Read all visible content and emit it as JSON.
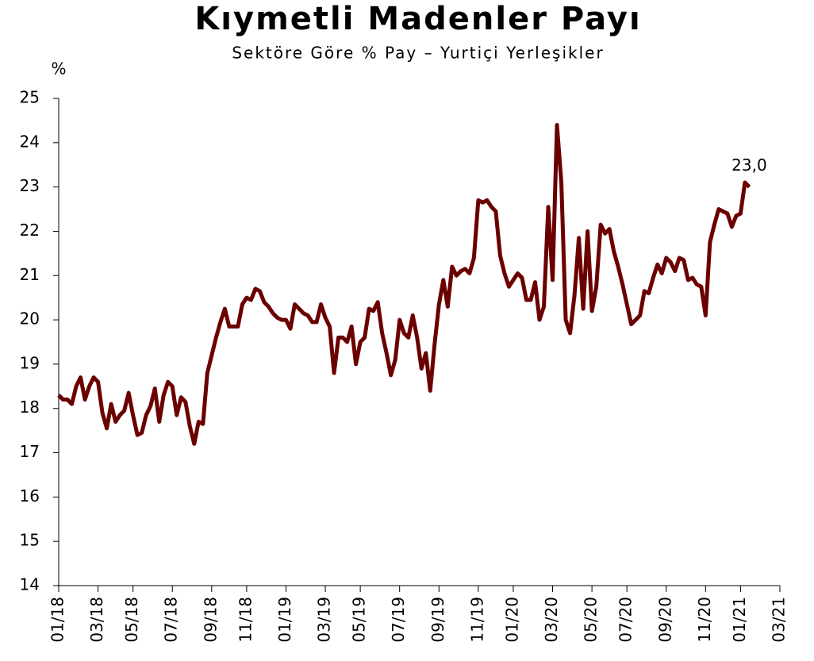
{
  "chart_data": {
    "type": "line",
    "title": "Kıymetli Madenler Payı",
    "subtitle": "Sektöre Göre % Pay – Yurtiçi Yerleşikler",
    "ylabel": "%",
    "categories": [
      "01/18",
      null,
      null,
      null,
      null,
      null,
      null,
      null,
      null,
      "03/18",
      null,
      null,
      null,
      null,
      null,
      null,
      null,
      "05/18",
      null,
      null,
      null,
      null,
      null,
      null,
      null,
      null,
      "07/18",
      null,
      null,
      null,
      null,
      null,
      null,
      null,
      null,
      "09/18",
      null,
      null,
      null,
      null,
      null,
      null,
      null,
      "11/18",
      null,
      null,
      null,
      null,
      null,
      null,
      null,
      null,
      "01/19",
      null,
      null,
      null,
      null,
      null,
      null,
      null,
      null,
      "03/19",
      null,
      null,
      null,
      null,
      null,
      null,
      null,
      "05/19",
      null,
      null,
      null,
      null,
      null,
      null,
      null,
      null,
      "07/19",
      null,
      null,
      null,
      null,
      null,
      null,
      null,
      null,
      "09/19",
      null,
      null,
      null,
      null,
      null,
      null,
      null,
      null,
      "11/19",
      null,
      null,
      null,
      null,
      null,
      null,
      null,
      "01/20",
      null,
      null,
      null,
      null,
      null,
      null,
      null,
      null,
      "03/20",
      null,
      null,
      null,
      null,
      null,
      null,
      null,
      null,
      "05/20",
      null,
      null,
      null,
      null,
      null,
      null,
      null,
      "07/20",
      null,
      null,
      null,
      null,
      null,
      null,
      null,
      null,
      "09/20",
      null,
      null,
      null,
      null,
      null,
      null,
      null,
      null,
      "11/20",
      null,
      null,
      null,
      null,
      null,
      null,
      null,
      "01/21",
      null,
      null,
      null,
      null,
      null,
      null,
      null,
      null,
      "03/21"
    ],
    "series": [
      {
        "name": "Kıymetli Madenler Payı",
        "color": "#6b0000",
        "values": [
          18.3,
          18.2,
          18.2,
          18.1,
          18.5,
          18.7,
          18.2,
          18.5,
          18.7,
          18.6,
          17.9,
          17.55,
          18.1,
          17.7,
          17.85,
          17.95,
          18.35,
          17.85,
          17.4,
          17.45,
          17.85,
          18.05,
          18.45,
          17.7,
          18.3,
          18.6,
          18.5,
          17.85,
          18.25,
          18.15,
          17.6,
          17.2,
          17.7,
          17.65,
          18.8,
          19.2,
          19.6,
          19.95,
          20.25,
          19.85,
          19.85,
          19.85,
          20.35,
          20.5,
          20.45,
          20.7,
          20.65,
          20.4,
          20.3,
          20.15,
          20.05,
          20.0,
          20.0,
          19.8,
          20.35,
          20.25,
          20.15,
          20.1,
          19.95,
          19.95,
          20.35,
          20.05,
          19.85,
          18.8,
          19.6,
          19.6,
          19.5,
          19.85,
          19.0,
          19.5,
          19.6,
          20.25,
          20.2,
          20.4,
          19.7,
          19.25,
          18.75,
          19.1,
          20.0,
          19.7,
          19.6,
          20.1,
          19.6,
          18.9,
          19.25,
          18.4,
          19.45,
          20.35,
          20.9,
          20.3,
          21.2,
          21.0,
          21.1,
          21.15,
          21.05,
          21.4,
          22.7,
          22.65,
          22.7,
          22.55,
          22.45,
          21.45,
          21.05,
          20.75,
          20.9,
          21.05,
          20.95,
          20.45,
          20.45,
          20.85,
          20.0,
          20.3,
          22.55,
          20.9,
          24.4,
          23.1,
          20.0,
          19.7,
          20.55,
          21.85,
          20.25,
          22.0,
          20.2,
          20.75,
          22.15,
          21.95,
          22.05,
          21.55,
          21.2,
          20.8,
          20.35,
          19.9,
          20.0,
          20.1,
          20.65,
          20.6,
          20.95,
          21.25,
          21.05,
          21.4,
          21.3,
          21.1,
          21.4,
          21.35,
          20.9,
          20.95,
          20.8,
          20.75,
          20.1,
          21.75,
          22.15,
          22.5,
          22.45,
          22.4,
          22.1,
          22.35,
          22.4,
          23.1,
          23.0,
          null,
          null,
          null,
          null,
          null,
          null,
          null
        ],
        "value_labels": [
          null,
          null,
          null,
          null,
          null,
          null,
          null,
          null,
          null,
          null,
          null,
          null,
          null,
          null,
          null,
          null,
          null,
          null,
          null,
          null,
          null,
          null,
          null,
          null,
          null,
          null,
          null,
          null,
          null,
          null,
          null,
          null,
          null,
          null,
          null,
          null,
          null,
          null,
          null,
          null,
          null,
          null,
          null,
          null,
          null,
          null,
          null,
          null,
          null,
          null,
          null,
          null,
          null,
          null,
          null,
          null,
          null,
          null,
          null,
          null,
          null,
          null,
          null,
          null,
          null,
          null,
          null,
          null,
          null,
          null,
          null,
          null,
          null,
          null,
          null,
          null,
          null,
          null,
          null,
          null,
          null,
          null,
          null,
          null,
          null,
          null,
          null,
          null,
          null,
          null,
          null,
          null,
          null,
          null,
          null,
          null,
          null,
          null,
          null,
          null,
          null,
          null,
          null,
          null,
          null,
          null,
          null,
          null,
          null,
          null,
          null,
          null,
          null,
          null,
          null,
          null,
          null,
          null,
          null,
          null,
          null,
          null,
          null,
          null,
          null,
          null,
          null,
          null,
          null,
          null,
          null,
          null,
          null,
          null,
          null,
          null,
          null,
          null,
          null,
          null,
          null,
          null,
          null,
          null,
          null,
          null,
          null,
          null,
          null,
          null,
          null,
          null,
          null,
          null,
          null,
          null,
          null,
          null,
          "23,0",
          null,
          null,
          null,
          null,
          null,
          null,
          null
        ]
      }
    ],
    "ylim": [
      14,
      25
    ],
    "yticks": [
      14,
      15,
      16,
      17,
      18,
      19,
      20,
      21,
      22,
      23,
      24,
      25
    ],
    "grid": false
  }
}
